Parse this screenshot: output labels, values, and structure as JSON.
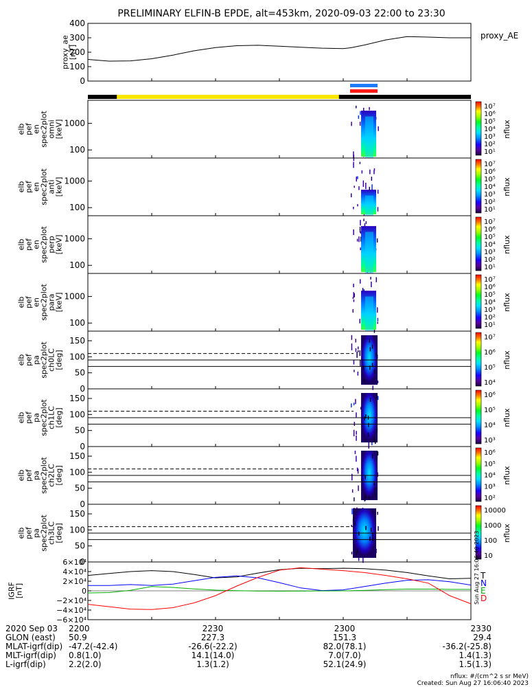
{
  "title": "PRELIMINARY ELFIN-B EPDE, alt=453km, 2020-09-03 22:00 to 23:30",
  "colors": {
    "ae_line": "#000000",
    "sci_bar_black": "#000000",
    "sci_bar_yellow": "#ffe600",
    "blue_bar": "#1e7bff",
    "red_bar": "#ff1a1a",
    "field_T": "#000000",
    "field_N": "#0000ff",
    "field_E": "#00b000",
    "field_D": "#ff0000"
  },
  "chart_data": [
    {
      "type": "line",
      "panel": "proxy_ae",
      "ylabel": "proxy_ae\n[nT]",
      "legend": "proxy_AE",
      "ylim": [
        0,
        400
      ],
      "yticks": [
        "400",
        "300",
        "200",
        "100",
        "0"
      ],
      "x_minutes": [
        0,
        5,
        10,
        15,
        20,
        25,
        30,
        35,
        40,
        45,
        50,
        55,
        60,
        62,
        65,
        70,
        75,
        80,
        85,
        90
      ],
      "values": [
        150,
        138,
        140,
        155,
        180,
        210,
        232,
        245,
        248,
        242,
        235,
        228,
        225,
        232,
        250,
        285,
        308,
        305,
        300,
        300
      ]
    },
    {
      "type": "heatmap",
      "panel": "omni",
      "ylabel": "elb\npef\nen\nspec2plot\nomni\n[keV]",
      "yticks": [
        "1000",
        "100"
      ],
      "colorbar": {
        "label": "nflux",
        "ticks": [
          "10⁷",
          "10⁶",
          "10⁵",
          "10⁴",
          "10³",
          "10²",
          "10¹"
        ]
      }
    },
    {
      "type": "heatmap",
      "panel": "anti",
      "ylabel": "elb\npef\nen\nspec2plot\nanti\n[keV]",
      "yticks": [
        "1000",
        "100"
      ],
      "colorbar": {
        "label": "nflux",
        "ticks": [
          "10⁷",
          "10⁶",
          "10⁵",
          "10⁴",
          "10³",
          "10²",
          "10¹"
        ]
      }
    },
    {
      "type": "heatmap",
      "panel": "perp",
      "ylabel": "elb\npef\nen\nspec2plot\nperp\n[keV]",
      "yticks": [
        "1000",
        "100"
      ],
      "colorbar": {
        "label": "nflux",
        "ticks": [
          "10⁷",
          "10⁶",
          "10⁵",
          "10⁴",
          "10³",
          "10²",
          "10¹"
        ]
      }
    },
    {
      "type": "heatmap",
      "panel": "para",
      "ylabel": "elb\npef\nen\nspec2plot\npara\n[keV]",
      "yticks": [
        "1000",
        "100"
      ],
      "colorbar": {
        "label": "nflux",
        "ticks": [
          "10⁷",
          "10⁶",
          "10⁵",
          "10⁴",
          "10³",
          "10²",
          "10¹"
        ]
      }
    },
    {
      "type": "heatmap",
      "panel": "ch0LC",
      "ylabel": "elb\npef\npa\nspec2plot\nch0LC\n[deg]",
      "yticks": [
        "150",
        "100",
        "50",
        "0"
      ],
      "colorbar": {
        "label": "nflux",
        "ticks": [
          "10⁷",
          "10⁶",
          "10⁵",
          "10⁴"
        ]
      }
    },
    {
      "type": "heatmap",
      "panel": "ch1LC",
      "ylabel": "elb\npef\npa\nspec2plot\nch1LC\n[deg]",
      "yticks": [
        "150",
        "100",
        "50",
        "0"
      ],
      "colorbar": {
        "label": "nflux",
        "ticks": [
          "10⁶",
          "10⁵",
          "10⁴",
          "10³"
        ]
      }
    },
    {
      "type": "heatmap",
      "panel": "ch2LC",
      "ylabel": "elb\npef\npa\nspec2plot\nch2LC\n[deg]",
      "yticks": [
        "150",
        "100",
        "50",
        "0"
      ],
      "colorbar": {
        "label": "nflux",
        "ticks": [
          "10⁶",
          "10⁵",
          "10⁴",
          "10³",
          "10²"
        ]
      }
    },
    {
      "type": "heatmap",
      "panel": "ch3LC",
      "ylabel": "elb\npef\npa\nspec2plot\nch3LC\n[deg]",
      "yticks": [
        "150",
        "100",
        "50",
        "0"
      ],
      "colorbar": {
        "label": "nflux",
        "ticks": [
          "10000",
          "1000",
          "100",
          "10"
        ]
      }
    },
    {
      "type": "line",
      "panel": "IGRF",
      "ylabel": "IGRF\n[nT]",
      "yticks": [
        "6×10⁴",
        "4×10⁴",
        "2×10⁴",
        "0",
        "−2×10⁴",
        "−4×10⁴",
        "−6×10⁴"
      ],
      "ylim": [
        -60000,
        60000
      ],
      "legend_letters": [
        "T",
        "N",
        "E",
        "D"
      ],
      "x_minutes": [
        0,
        5,
        10,
        15,
        20,
        25,
        30,
        35,
        40,
        45,
        50,
        55,
        60,
        65,
        70,
        75,
        80,
        85,
        90
      ],
      "series": [
        {
          "name": "T",
          "values": [
            32000,
            36000,
            40000,
            42000,
            40000,
            34000,
            27000,
            29000,
            37000,
            44000,
            47000,
            46000,
            47000,
            46000,
            43000,
            38000,
            31000,
            25000,
            26000
          ]
        },
        {
          "name": "N",
          "values": [
            11000,
            11000,
            13000,
            11000,
            14000,
            21000,
            28000,
            31000,
            27000,
            17000,
            6000,
            500,
            2000,
            9000,
            16000,
            22000,
            23000,
            19000,
            12000
          ]
        },
        {
          "name": "E",
          "values": [
            -4500,
            -3500,
            1000,
            9000,
            7000,
            4000,
            1500,
            300,
            -500,
            -700,
            -500,
            -200,
            0,
            800,
            2500,
            3500,
            3500,
            3000,
            3000
          ]
        },
        {
          "name": "D",
          "values": [
            -28000,
            -33000,
            -38000,
            -39000,
            -35000,
            -25000,
            -10000,
            10000,
            28000,
            43000,
            48000,
            45000,
            42000,
            38000,
            32000,
            25000,
            16000,
            -10000,
            -27000
          ]
        }
      ]
    }
  ],
  "side_text": "Sun Aug 27 16:06:40 2023",
  "bottom_table": {
    "row_labels": [
      "2020 Sep 03",
      "GLON (east)",
      "MLAT-igrf(dip)",
      "MLT-igrf(dip)",
      "L-igrf(dip)"
    ],
    "columns": [
      [
        "2200",
        "50.9",
        "-47.2(-42.4)",
        "0.8(1.0)",
        "2.2(2.0)"
      ],
      [
        "2230",
        "227.3",
        "-26.6(-22.2)",
        "14.1(14.0)",
        "1.3(1.2)"
      ],
      [
        "2300",
        "151.3",
        "82.0(78.1)",
        "7.0(7.0)",
        "52.1(24.9)"
      ],
      [
        "2330",
        "29.4",
        "-36.2(-25.8)",
        "1.4(1.3)",
        "1.5(1.3)"
      ]
    ]
  },
  "footer": {
    "units": "nflux: #/(cm^2 s sr MeV)",
    "created": "Created: Sun Aug 27 16:06:40 2023"
  }
}
